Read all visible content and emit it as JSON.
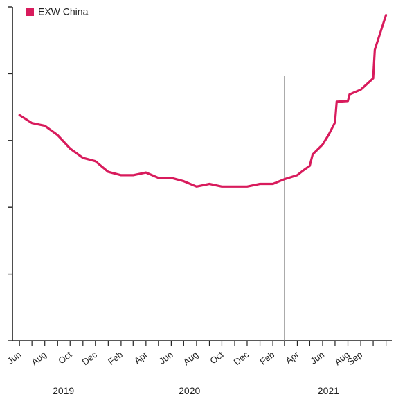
{
  "chart_data": {
    "type": "line",
    "title": "",
    "xlabel": "",
    "ylabel": "",
    "legend": {
      "position": "top-left",
      "entries": [
        "EXW China"
      ]
    },
    "grid": false,
    "series": [
      {
        "name": "EXW China",
        "color": "#d81b5c",
        "points": [
          [
            "2019-06-01",
            63.8
          ],
          [
            "2019-07-01",
            62.6
          ],
          [
            "2019-08-01",
            62.2
          ],
          [
            "2019-09-01",
            60.8
          ],
          [
            "2019-10-01",
            58.8
          ],
          [
            "2019-11-01",
            57.4
          ],
          [
            "2019-12-01",
            56.9
          ],
          [
            "2020-01-01",
            55.3
          ],
          [
            "2020-02-01",
            54.8
          ],
          [
            "2020-03-01",
            54.8
          ],
          [
            "2020-04-01",
            55.2
          ],
          [
            "2020-05-01",
            54.4
          ],
          [
            "2020-06-01",
            54.4
          ],
          [
            "2020-07-01",
            53.9
          ],
          [
            "2020-08-01",
            53.1
          ],
          [
            "2020-09-01",
            53.5
          ],
          [
            "2020-10-01",
            53.1
          ],
          [
            "2020-11-01",
            53.1
          ],
          [
            "2020-12-01",
            53.1
          ],
          [
            "2021-01-01",
            53.5
          ],
          [
            "2021-02-01",
            53.5
          ],
          [
            "2021-03-01",
            54.2
          ],
          [
            "2021-04-01",
            54.8
          ],
          [
            "2021-04-15",
            55.5
          ],
          [
            "2021-05-01",
            56.2
          ],
          [
            "2021-05-08",
            57.9
          ],
          [
            "2021-06-01",
            59.4
          ],
          [
            "2021-06-15",
            60.8
          ],
          [
            "2021-07-01",
            62.7
          ],
          [
            "2021-07-05",
            65.8
          ],
          [
            "2021-08-01",
            65.9
          ],
          [
            "2021-08-05",
            66.9
          ],
          [
            "2021-09-01",
            67.6
          ],
          [
            "2021-10-01",
            69.3
          ],
          [
            "2021-10-05",
            73.6
          ],
          [
            "2021-11-01",
            78.8
          ]
        ]
      }
    ],
    "x_tick_labels": [
      "Jun",
      "Aug",
      "Oct",
      "Dec",
      "Feb",
      "Apr",
      "Jun",
      "Aug",
      "Oct",
      "Dec",
      "Feb",
      "Apr",
      "Jun",
      "Aug",
      "Sep"
    ],
    "x_tick_dates": [
      "2019-06-01",
      "2019-08-01",
      "2019-10-01",
      "2019-12-01",
      "2020-02-01",
      "2020-04-01",
      "2020-06-01",
      "2020-08-01",
      "2020-10-01",
      "2020-12-01",
      "2021-02-01",
      "2021-04-01",
      "2021-06-01",
      "2021-08-01",
      "2021-09-01"
    ],
    "year_labels": [
      {
        "label": "2019",
        "center_date": "2019-09-15"
      },
      {
        "label": "2020",
        "center_date": "2020-07-15"
      },
      {
        "label": "2021",
        "center_date": "2021-06-15"
      }
    ],
    "vertical_marker": {
      "date": "2021-03-01"
    },
    "ylim": [
      30,
      80
    ],
    "y_ticks": [
      30,
      40,
      50,
      60,
      70,
      80
    ],
    "x_range": [
      "2019-05-15",
      "2021-11-15"
    ]
  }
}
